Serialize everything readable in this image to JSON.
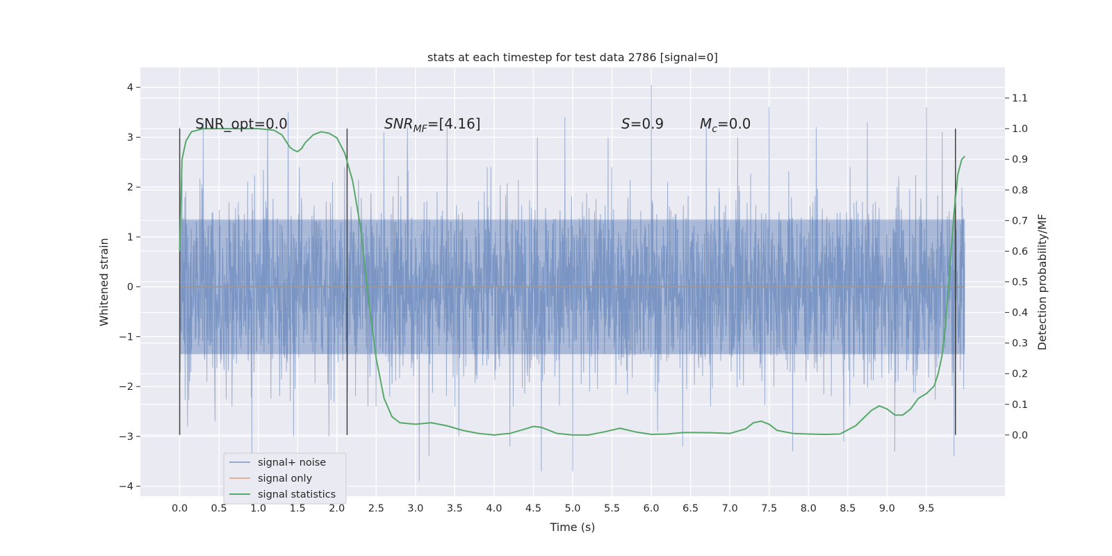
{
  "chart_data": {
    "type": "line",
    "title": "stats at each timestep for test data 2786 [signal=0]",
    "xlabel": "Time (s)",
    "ylabel": "Whitened strain",
    "y2label": "Detection probability/MF",
    "xlim": [
      -0.5,
      10.5
    ],
    "ylim": [
      -4.2,
      4.4
    ],
    "y2lim": [
      -0.2,
      1.2
    ],
    "xticks": [
      0.0,
      0.5,
      1.0,
      1.5,
      2.0,
      2.5,
      3.0,
      3.5,
      4.0,
      4.5,
      5.0,
      5.5,
      6.0,
      6.5,
      7.0,
      7.5,
      8.0,
      8.5,
      9.0,
      9.5
    ],
    "xtick_labels": [
      "0.0",
      "0.5",
      "1.0",
      "1.5",
      "2.0",
      "2.5",
      "3.0",
      "3.5",
      "4.0",
      "4.5",
      "5.0",
      "5.5",
      "6.0",
      "6.5",
      "7.0",
      "7.5",
      "8.0",
      "8.5",
      "9.0",
      "9.5"
    ],
    "yticks": [
      -4,
      -3,
      -2,
      -1,
      0,
      1,
      2,
      3,
      4
    ],
    "ytick_labels": [
      "−4",
      "−3",
      "−2",
      "−1",
      "0",
      "1",
      "2",
      "3",
      "4"
    ],
    "y2ticks": [
      0.0,
      0.1,
      0.2,
      0.3,
      0.4,
      0.5,
      0.6,
      0.7,
      0.8,
      0.9,
      1.0,
      1.1
    ],
    "y2tick_labels": [
      "0.0",
      "0.1",
      "0.2",
      "0.3",
      "0.4",
      "0.5",
      "0.6",
      "0.7",
      "0.8",
      "0.9",
      "1.0",
      "1.1"
    ],
    "grid": true,
    "legend_position": "lower-left",
    "series": [
      {
        "name": "signal+ noise",
        "color": "#4c72b0",
        "style": "dense noise trace",
        "x_range": [
          0.0,
          9.99
        ],
        "typical_range": [
          -2.2,
          2.2
        ],
        "spikes": [
          {
            "x": 0.0,
            "y": 3.2
          },
          {
            "x": 0.03,
            "y": 2.2
          },
          {
            "x": 0.1,
            "y": -2.8
          },
          {
            "x": 0.3,
            "y": 3.3
          },
          {
            "x": 0.45,
            "y": -2.7
          },
          {
            "x": 0.92,
            "y": -3.4
          },
          {
            "x": 1.12,
            "y": 3.3
          },
          {
            "x": 1.38,
            "y": 3.5
          },
          {
            "x": 1.45,
            "y": -3.0
          },
          {
            "x": 1.9,
            "y": -3.0
          },
          {
            "x": 2.1,
            "y": 2.4
          },
          {
            "x": 2.5,
            "y": -2.4
          },
          {
            "x": 2.6,
            "y": 3.1
          },
          {
            "x": 2.9,
            "y": 3.2
          },
          {
            "x": 3.05,
            "y": -3.9
          },
          {
            "x": 3.17,
            "y": -3.4
          },
          {
            "x": 3.4,
            "y": 3.2
          },
          {
            "x": 3.55,
            "y": -3.0
          },
          {
            "x": 4.2,
            "y": -3.2
          },
          {
            "x": 4.55,
            "y": 3.0
          },
          {
            "x": 4.6,
            "y": -3.7
          },
          {
            "x": 4.9,
            "y": 3.4
          },
          {
            "x": 5.0,
            "y": -3.7
          },
          {
            "x": 5.45,
            "y": 3.0
          },
          {
            "x": 6.0,
            "y": 4.05
          },
          {
            "x": 6.08,
            "y": -2.9
          },
          {
            "x": 6.4,
            "y": -3.2
          },
          {
            "x": 6.7,
            "y": 3.3
          },
          {
            "x": 7.1,
            "y": 3.0
          },
          {
            "x": 7.5,
            "y": 3.6
          },
          {
            "x": 7.8,
            "y": -3.3
          },
          {
            "x": 8.1,
            "y": 3.2
          },
          {
            "x": 8.45,
            "y": -3.1
          },
          {
            "x": 8.75,
            "y": 3.3
          },
          {
            "x": 9.1,
            "y": -3.3
          },
          {
            "x": 9.5,
            "y": 3.6
          },
          {
            "x": 9.7,
            "y": 3.1
          },
          {
            "x": 9.85,
            "y": -3.4
          },
          {
            "x": 9.95,
            "y": 2.0
          }
        ]
      },
      {
        "name": "signal only",
        "color": "#dd8452",
        "x": [
          0.0,
          9.99
        ],
        "y": [
          0.0,
          0.0
        ]
      },
      {
        "name": "signal statistics",
        "color": "#55a868",
        "axis": "right",
        "x": [
          0.0,
          0.03,
          0.08,
          0.15,
          0.3,
          0.5,
          0.8,
          1.0,
          1.2,
          1.3,
          1.4,
          1.45,
          1.5,
          1.55,
          1.6,
          1.7,
          1.8,
          1.9,
          2.0,
          2.1,
          2.2,
          2.3,
          2.4,
          2.5,
          2.6,
          2.7,
          2.8,
          3.0,
          3.2,
          3.4,
          3.6,
          3.8,
          4.0,
          4.2,
          4.4,
          4.5,
          4.6,
          4.8,
          5.0,
          5.2,
          5.4,
          5.6,
          5.8,
          6.0,
          6.2,
          6.4,
          6.6,
          6.8,
          7.0,
          7.2,
          7.3,
          7.4,
          7.5,
          7.6,
          7.8,
          8.0,
          8.2,
          8.4,
          8.6,
          8.8,
          8.9,
          9.0,
          9.1,
          9.2,
          9.3,
          9.4,
          9.5,
          9.6,
          9.65,
          9.7,
          9.75,
          9.8,
          9.85,
          9.9,
          9.95,
          9.99
        ],
        "y": [
          0.6,
          0.9,
          0.96,
          0.99,
          1.0,
          1.0,
          1.0,
          1.0,
          0.995,
          0.98,
          0.94,
          0.93,
          0.925,
          0.935,
          0.955,
          0.98,
          0.99,
          0.985,
          0.97,
          0.92,
          0.83,
          0.68,
          0.45,
          0.25,
          0.12,
          0.06,
          0.04,
          0.035,
          0.04,
          0.03,
          0.015,
          0.005,
          0.0,
          0.005,
          0.02,
          0.028,
          0.025,
          0.005,
          0.0,
          0.0,
          0.01,
          0.022,
          0.01,
          0.002,
          0.003,
          0.008,
          0.008,
          0.007,
          0.005,
          0.02,
          0.04,
          0.045,
          0.035,
          0.015,
          0.005,
          0.003,
          0.002,
          0.003,
          0.03,
          0.08,
          0.095,
          0.085,
          0.065,
          0.065,
          0.085,
          0.12,
          0.135,
          0.16,
          0.2,
          0.26,
          0.38,
          0.55,
          0.72,
          0.85,
          0.9,
          0.91
        ]
      }
    ],
    "vertical_lines_x": [
      0.0,
      2.13,
      9.87
    ],
    "vertical_lines_y2": [
      0.0,
      1.0
    ],
    "annotations": {
      "snr_opt": "SNR_opt=0.0",
      "snr_mf_main": "SNR",
      "snr_mf_sub": "MF",
      "snr_mf_value": "=[4.16]",
      "s_main": "S",
      "s_value": "=0.9",
      "mc_main": "M",
      "mc_sub": "c",
      "mc_value": "=0.0"
    },
    "colors": {
      "plot_background": "#eaeaf2",
      "grid": "#ffffff",
      "vline": "#404040"
    }
  }
}
